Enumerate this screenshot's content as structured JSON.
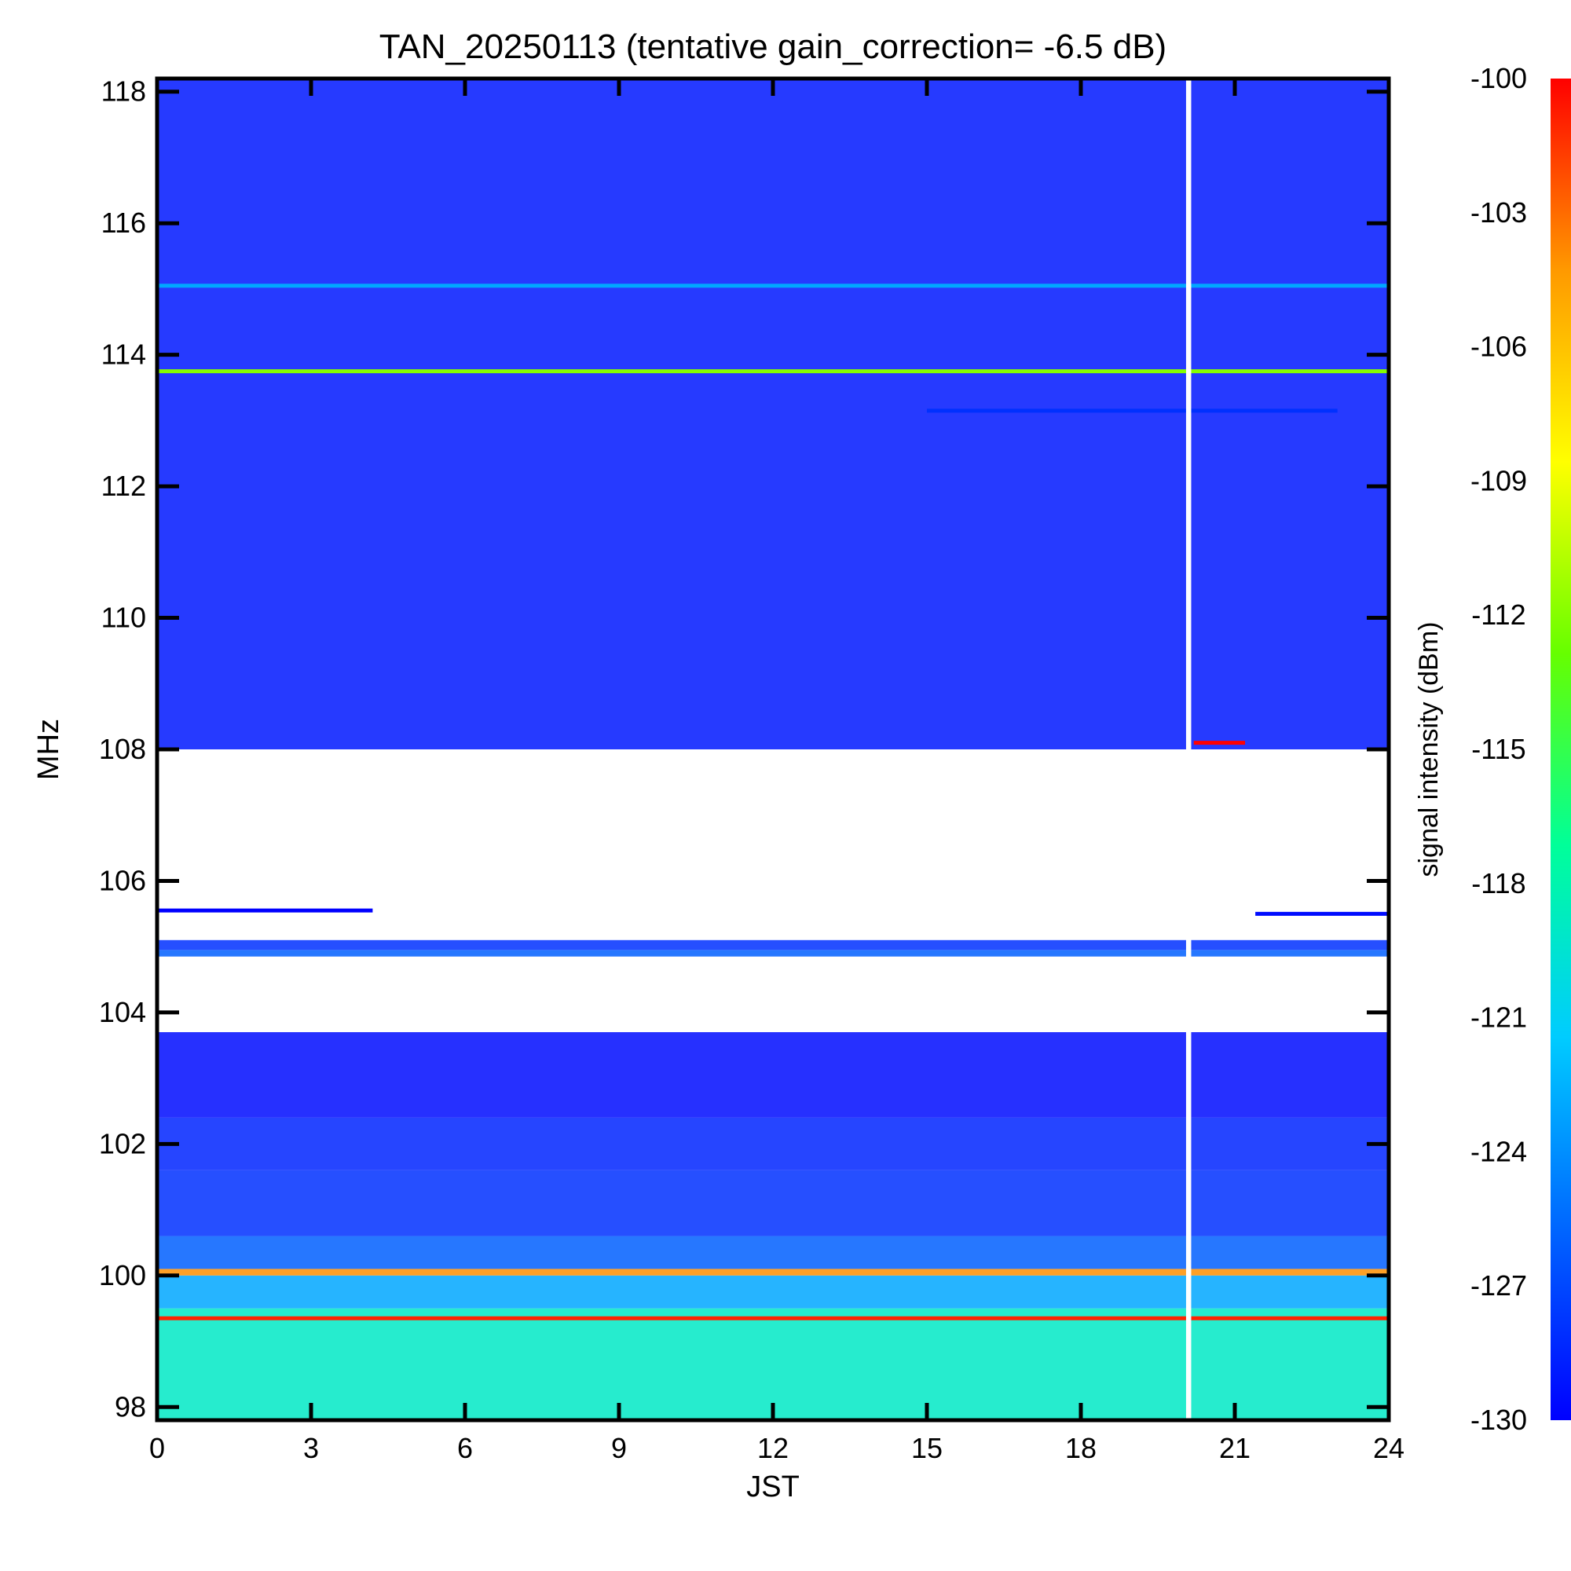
{
  "chart_data": {
    "type": "heatmap",
    "title": "TAN_20250113 (tentative gain_correction= -6.5 dB)",
    "xlabel": "JST",
    "ylabel": "MHz",
    "colorbar_label": "signal intensity (dBm)",
    "xlim": [
      0,
      24
    ],
    "ylim": [
      97.8,
      118.2
    ],
    "x_ticks": [
      "0",
      "3",
      "6",
      "9",
      "12",
      "15",
      "18",
      "21",
      "24"
    ],
    "y_ticks": [
      "98",
      "100",
      "102",
      "104",
      "106",
      "108",
      "110",
      "112",
      "114",
      "116",
      "118"
    ],
    "colorbar_range": [
      -130,
      -100
    ],
    "colorbar_ticks": [
      "-100",
      "-103",
      "-106",
      "-109",
      "-112",
      "-115",
      "-118",
      "-121",
      "-124",
      "-127",
      "-130"
    ],
    "colormap": [
      "#0000ff",
      "#0066ff",
      "#00ccff",
      "#00ff99",
      "#66ff00",
      "#ffff00",
      "#ff9900",
      "#ff0000"
    ],
    "missing_data_interval": [
      20.05,
      20.15
    ],
    "bands": [
      {
        "freq": [
          97.8,
          99.5
        ],
        "level_dbm": -119
      },
      {
        "freq": [
          99.5,
          100.0
        ],
        "level_dbm": -123
      },
      {
        "freq": [
          100.0,
          100.1
        ],
        "level_dbm": -104
      },
      {
        "freq": [
          100.1,
          100.6
        ],
        "level_dbm": -126
      },
      {
        "freq": [
          100.6,
          101.6
        ],
        "level_dbm": -128
      },
      {
        "freq": [
          101.6,
          102.4
        ],
        "level_dbm": -128.5
      },
      {
        "freq": [
          102.4,
          103.7
        ],
        "level_dbm": -129.5
      },
      {
        "freq": [
          104.85,
          104.95
        ],
        "level_dbm": -126
      },
      {
        "freq": [
          104.95,
          105.1
        ],
        "level_dbm": -128
      },
      {
        "freq": [
          108.0,
          118.2
        ],
        "level_dbm": -129
      }
    ],
    "lines": [
      {
        "freq": 115.05,
        "level_dbm": -123,
        "time": [
          0,
          24
        ]
      },
      {
        "freq": 113.75,
        "level_dbm": -112,
        "time": [
          0,
          24
        ]
      },
      {
        "freq": 113.15,
        "level_dbm": -128,
        "time": [
          15,
          23
        ]
      },
      {
        "freq": 108.1,
        "level_dbm": -100,
        "time": [
          20.2,
          21.2
        ]
      },
      {
        "freq": 105.55,
        "level_dbm": -130,
        "time": [
          0,
          4.2
        ]
      },
      {
        "freq": 105.5,
        "level_dbm": -129.5,
        "time": [
          21.4,
          24
        ]
      },
      {
        "freq": 99.35,
        "level_dbm": -101,
        "time": [
          0,
          24
        ]
      }
    ]
  }
}
